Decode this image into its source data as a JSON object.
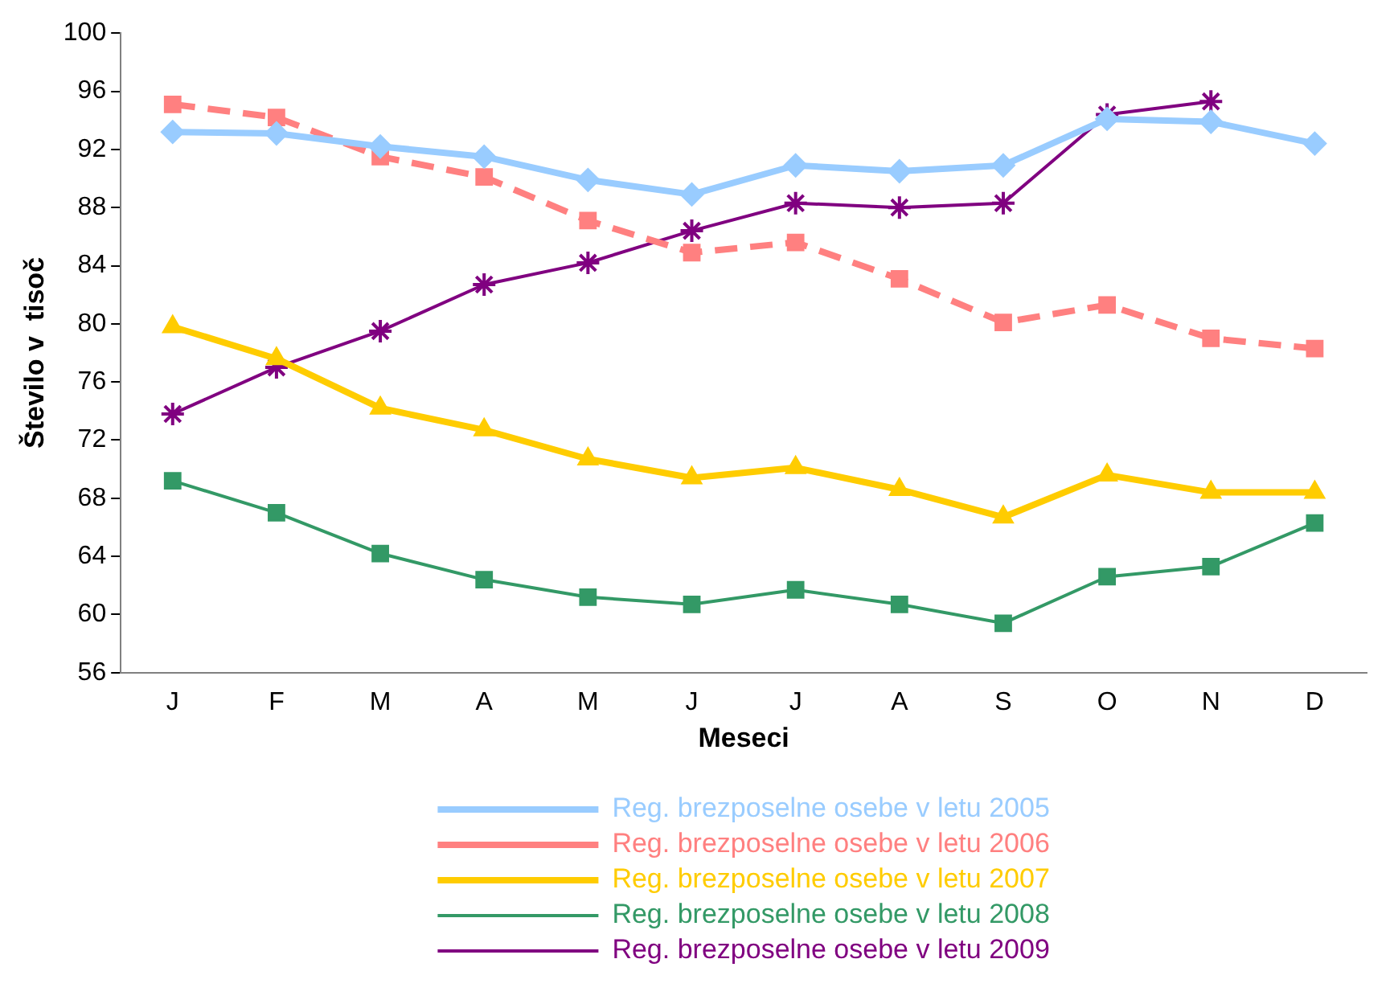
{
  "chart_data": {
    "type": "line",
    "xlabel": "Meseci",
    "ylabel": "Število v  tisoč",
    "categories": [
      "J",
      "F",
      "M",
      "A",
      "M",
      "J",
      "J",
      "A",
      "S",
      "O",
      "N",
      "D"
    ],
    "ylim": [
      56,
      100
    ],
    "yticks": [
      56,
      60,
      64,
      68,
      72,
      76,
      80,
      84,
      88,
      92,
      96,
      100
    ],
    "grid": false,
    "legend": "bottom",
    "series": [
      {
        "name": "Reg. brezposelne osebe v letu 2005",
        "color": "#99ccff",
        "marker": "diamond",
        "line_style": "solid",
        "values": [
          93.2,
          93.1,
          92.2,
          91.5,
          89.9,
          88.9,
          90.9,
          90.5,
          90.9,
          94.1,
          93.9,
          92.4
        ]
      },
      {
        "name": "Reg. brezposelne osebe v letu 2006",
        "color": "#ff8080",
        "marker": "square",
        "line_style": "dashed",
        "values": [
          95.1,
          94.2,
          91.5,
          90.1,
          87.1,
          84.9,
          85.6,
          83.1,
          80.1,
          81.3,
          79.0,
          78.3
        ]
      },
      {
        "name": "Reg. brezposelne osebe v letu 2007",
        "color": "#ffcc00",
        "marker": "triangle",
        "line_style": "solid",
        "values": [
          79.8,
          77.6,
          74.2,
          72.7,
          70.7,
          69.4,
          70.1,
          68.6,
          66.7,
          69.6,
          68.4,
          68.4
        ]
      },
      {
        "name": "Reg. brezposelne osebe v letu 2008",
        "color": "#339966",
        "marker": "square",
        "line_style": "solid",
        "values": [
          69.2,
          67.0,
          64.2,
          62.4,
          61.2,
          60.7,
          61.7,
          60.7,
          59.4,
          62.6,
          63.3,
          66.3
        ]
      },
      {
        "name": "Reg. brezposelne osebe v letu 2009",
        "color": "#800080",
        "marker": "cross",
        "line_style": "solid",
        "values": [
          73.8,
          77.0,
          79.5,
          82.7,
          84.2,
          86.4,
          88.3,
          88.0,
          88.3,
          94.4,
          95.3,
          null
        ]
      }
    ]
  }
}
